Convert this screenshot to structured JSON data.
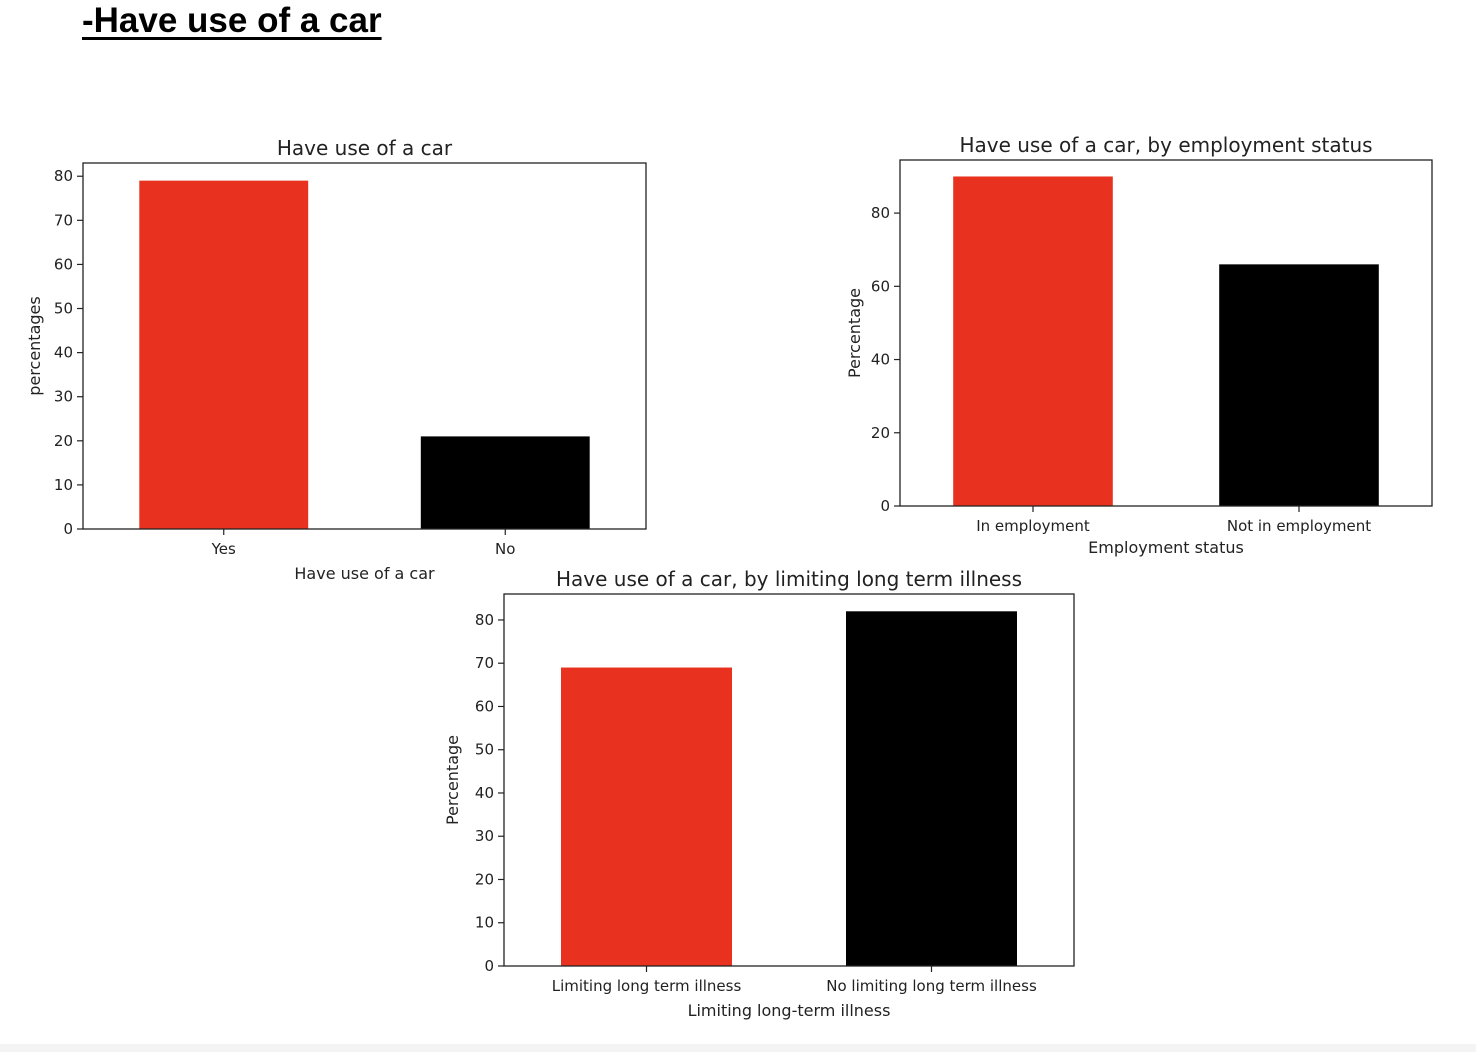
{
  "page": {
    "heading": "-Have use of a car"
  },
  "colors": {
    "first_bar": "#e8321f",
    "second_bar": "#000000",
    "axes": "#222222"
  },
  "chart_data": [
    {
      "id": "car-use-overall",
      "type": "bar",
      "title": "Have use of a car",
      "xlabel": "Have use of a car",
      "ylabel": "percentages",
      "categories": [
        "Yes",
        "No"
      ],
      "values": [
        79,
        21
      ],
      "bar_colors": [
        "#e8321f",
        "#000000"
      ],
      "ylim": [
        0,
        83
      ],
      "yticks": [
        0,
        10,
        20,
        30,
        40,
        50,
        60,
        70,
        80
      ],
      "grid": false,
      "legend": "none"
    },
    {
      "id": "car-use-by-employment",
      "type": "bar",
      "title": "Have use of a car, by employment status",
      "xlabel": "Employment status",
      "ylabel": "Percentage",
      "categories": [
        "In employment",
        "Not in employment"
      ],
      "values": [
        90,
        66
      ],
      "bar_colors": [
        "#e8321f",
        "#000000"
      ],
      "ylim": [
        0,
        94.5
      ],
      "yticks": [
        0,
        20,
        40,
        60,
        80
      ],
      "grid": false,
      "legend": "none"
    },
    {
      "id": "car-use-by-illness",
      "type": "bar",
      "title": "Have use of a car, by limiting long term illness",
      "xlabel": "Limiting long-term illness",
      "ylabel": "Percentage",
      "categories": [
        "Limiting long term illness",
        "No limiting long term illness"
      ],
      "values": [
        69,
        82
      ],
      "bar_colors": [
        "#e8321f",
        "#000000"
      ],
      "ylim": [
        0,
        86
      ],
      "yticks": [
        0,
        10,
        20,
        30,
        40,
        50,
        60,
        70,
        80
      ],
      "grid": false,
      "legend": "none"
    }
  ]
}
